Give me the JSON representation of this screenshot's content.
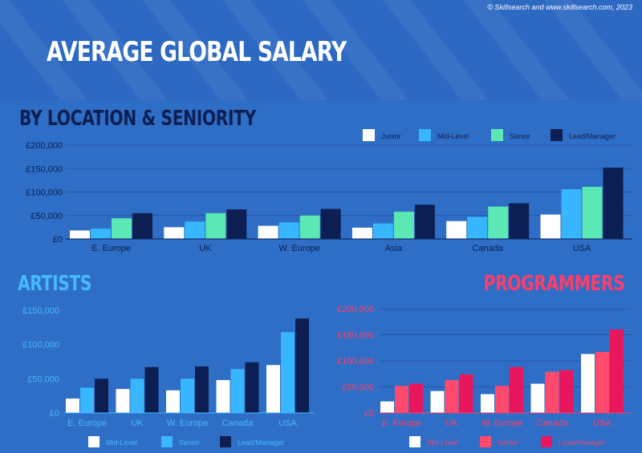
{
  "header": {
    "title": "AVERAGE GLOBAL SALARY",
    "credit": "© Skillsearch and www.skillsearch.com, 2023"
  },
  "sections": {
    "location": "BY LOCATION & SENIORITY",
    "artists": "ARTISTS",
    "programmers": "PROGRAMMERS"
  },
  "colors": {
    "background": "#2e6ec6",
    "junior": "#ffffff",
    "mid_level_blue": "#38b6ff",
    "senior_green": "#5ce8b5",
    "lead_dark": "#0d1f52",
    "artist_senior": "#38b6ff",
    "artist_lead": "#0d1f52",
    "prog_mid": "#ffffff",
    "prog_senior": "#ff4a6e",
    "prog_lead": "#e8175d",
    "artists_text": "#46b8ff",
    "programmers_text": "#ff3d6a"
  },
  "chart_data": [
    {
      "id": "location",
      "type": "bar",
      "title": "BY LOCATION & SENIORITY",
      "categories": [
        "E. Europe",
        "UK",
        "W. Europe",
        "Asia",
        "Canada",
        "USA"
      ],
      "series": [
        {
          "name": "Junior",
          "color": "#ffffff",
          "values": [
            18000,
            25000,
            28000,
            24000,
            38000,
            52000
          ]
        },
        {
          "name": "Mid-Level",
          "color": "#38b6ff",
          "values": [
            22000,
            37000,
            35000,
            33000,
            47000,
            106000
          ]
        },
        {
          "name": "Senior",
          "color": "#5ce8b5",
          "values": [
            44000,
            55000,
            50000,
            58000,
            69000,
            111000
          ]
        },
        {
          "name": "Lead/Manager",
          "color": "#0d1f52",
          "values": [
            55000,
            63000,
            64000,
            73000,
            76000,
            152000
          ]
        }
      ],
      "yticks": [
        0,
        50000,
        100000,
        150000,
        200000
      ],
      "ytick_labels": [
        "£0",
        "£50,000",
        "£100,000",
        "£150,000",
        "£200,000"
      ],
      "ylim": [
        0,
        200000
      ],
      "grid": true,
      "legend": "top-right"
    },
    {
      "id": "artists",
      "type": "bar",
      "title": "ARTISTS",
      "categories": [
        "E. Europe",
        "UK",
        "W. Europe",
        "Canada",
        "USA"
      ],
      "series": [
        {
          "name": "Mid-Level",
          "color": "#ffffff",
          "values": [
            21000,
            35000,
            33000,
            48000,
            70000
          ]
        },
        {
          "name": "Senior",
          "color": "#38b6ff",
          "values": [
            37000,
            50000,
            50000,
            64000,
            118000
          ]
        },
        {
          "name": "Lead/Manager",
          "color": "#0d1f52",
          "values": [
            50000,
            67000,
            68000,
            74000,
            138000
          ]
        }
      ],
      "yticks": [
        0,
        50000,
        100000,
        150000
      ],
      "ytick_labels": [
        "£0",
        "£50,000",
        "£100,000",
        "£150,000"
      ],
      "ylim": [
        0,
        150000
      ],
      "grid": false,
      "legend": "bottom"
    },
    {
      "id": "programmers",
      "type": "bar",
      "title": "PROGRAMMERS",
      "categories": [
        "E. Europe",
        "UK",
        "W. Europe",
        "Canada",
        "USA"
      ],
      "series": [
        {
          "name": "Mid-Level",
          "color": "#ffffff",
          "values": [
            22000,
            42000,
            36000,
            56000,
            113000
          ]
        },
        {
          "name": "Senior",
          "color": "#ff4a6e",
          "values": [
            52000,
            63000,
            52000,
            79000,
            117000
          ]
        },
        {
          "name": "Lead/Manager",
          "color": "#e8175d",
          "values": [
            56000,
            74000,
            88000,
            82000,
            160000
          ]
        }
      ],
      "yticks": [
        0,
        50000,
        100000,
        150000,
        200000
      ],
      "ytick_labels": [
        "£0",
        "£50,000",
        "£100,000",
        "£150,000",
        "£200,000"
      ],
      "ylim": [
        0,
        200000
      ],
      "grid": true,
      "legend": "bottom"
    }
  ]
}
